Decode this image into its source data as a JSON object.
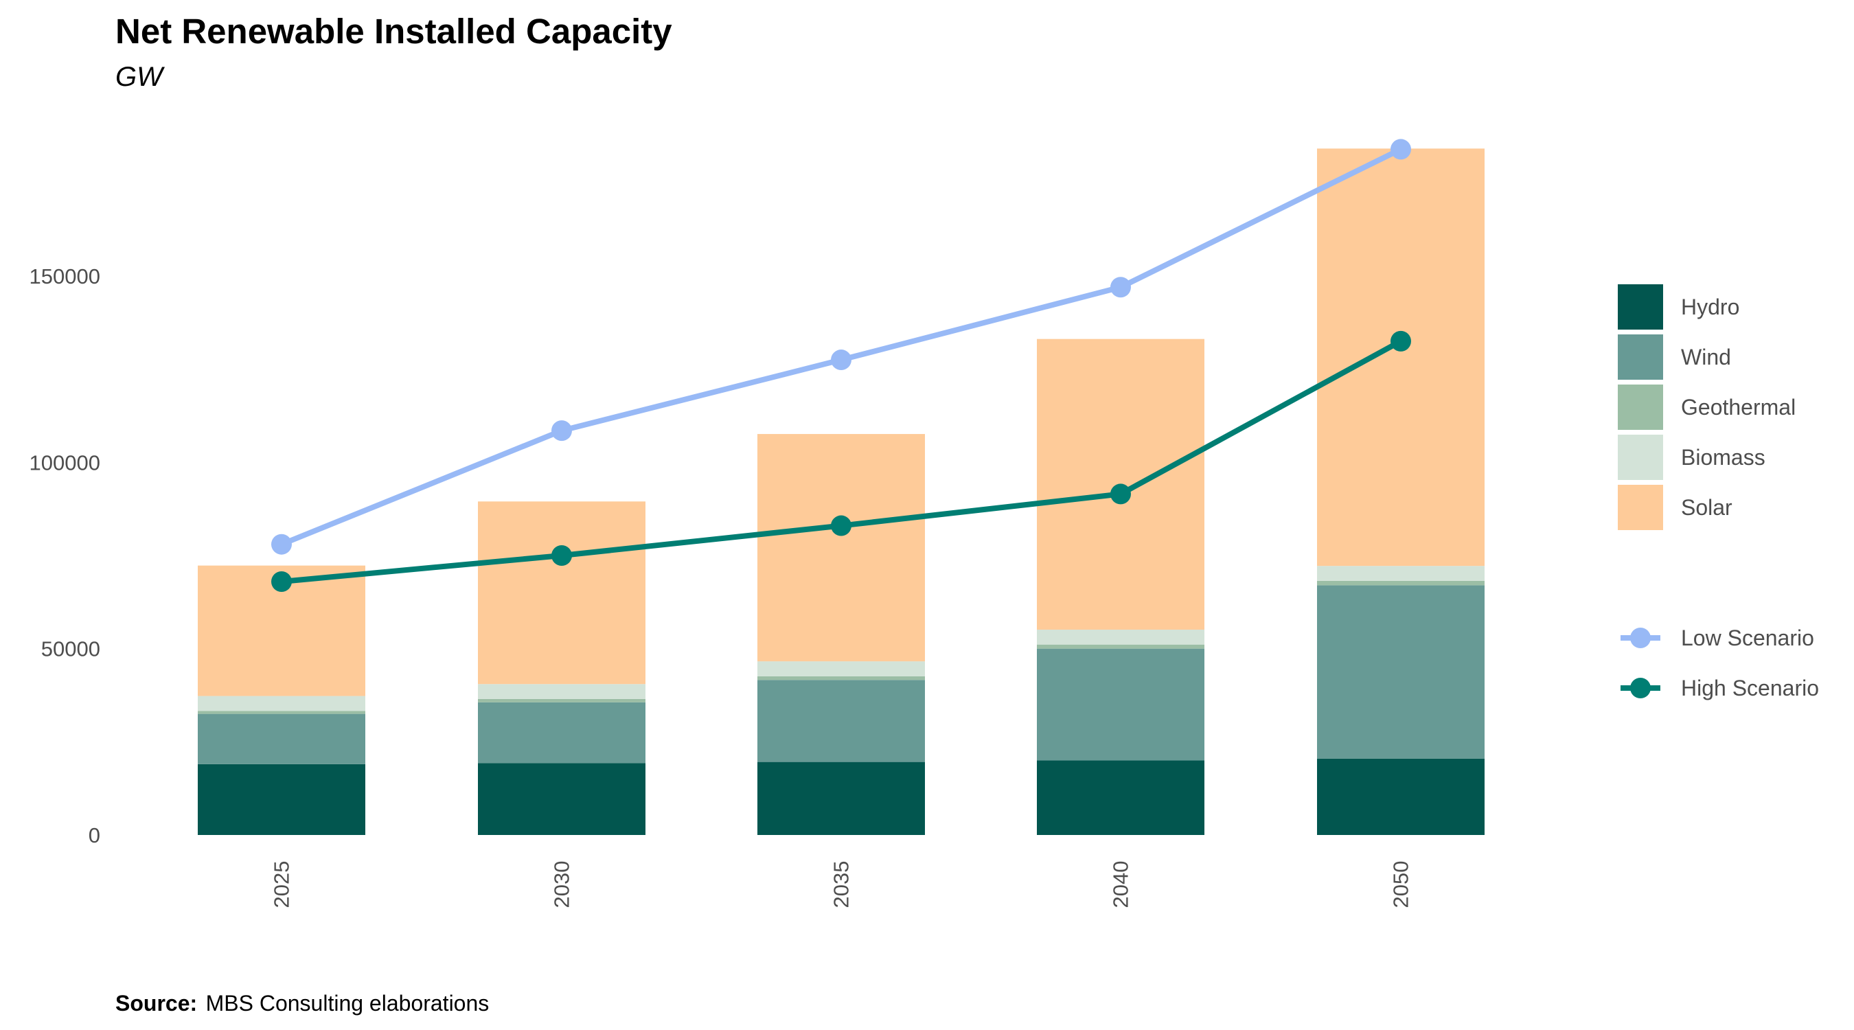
{
  "chart_data": {
    "type": "bar",
    "stacked": true,
    "title": "Net Renewable Installed Capacity",
    "subtitle": "GW",
    "categories": [
      "2025",
      "2030",
      "2035",
      "2040",
      "2050"
    ],
    "ylim": [
      0,
      185000
    ],
    "yticks": [
      0,
      50000,
      100000,
      150000
    ],
    "ytick_labels": [
      "0",
      "50000",
      "100000",
      "150000"
    ],
    "grid": false,
    "legend_position": "right",
    "series": [
      {
        "name": "Hydro",
        "color": "#02564F",
        "values": [
          19000,
          19300,
          19600,
          20000,
          20500
        ]
      },
      {
        "name": "Wind",
        "color": "#679A95",
        "values": [
          13500,
          16300,
          22000,
          30000,
          46500
        ]
      },
      {
        "name": "Geothermal",
        "color": "#9BBEA5",
        "values": [
          800,
          900,
          1000,
          1100,
          1200
        ]
      },
      {
        "name": "Biomass",
        "color": "#D3E3D8",
        "values": [
          4000,
          4000,
          4000,
          4000,
          4000
        ]
      },
      {
        "name": "Solar",
        "color": "#FECB99",
        "values": [
          35000,
          49000,
          61000,
          78000,
          112000
        ]
      }
    ],
    "lines": [
      {
        "name": "Low Scenario",
        "color": "#98B9F6",
        "values": [
          78000,
          108500,
          127500,
          147000,
          184000
        ]
      },
      {
        "name": "High Scenario",
        "color": "#007E73",
        "values": [
          68000,
          75000,
          83000,
          91500,
          132500
        ]
      }
    ],
    "source": {
      "label": "Source:",
      "text": "MBS Consulting elaborations"
    }
  }
}
